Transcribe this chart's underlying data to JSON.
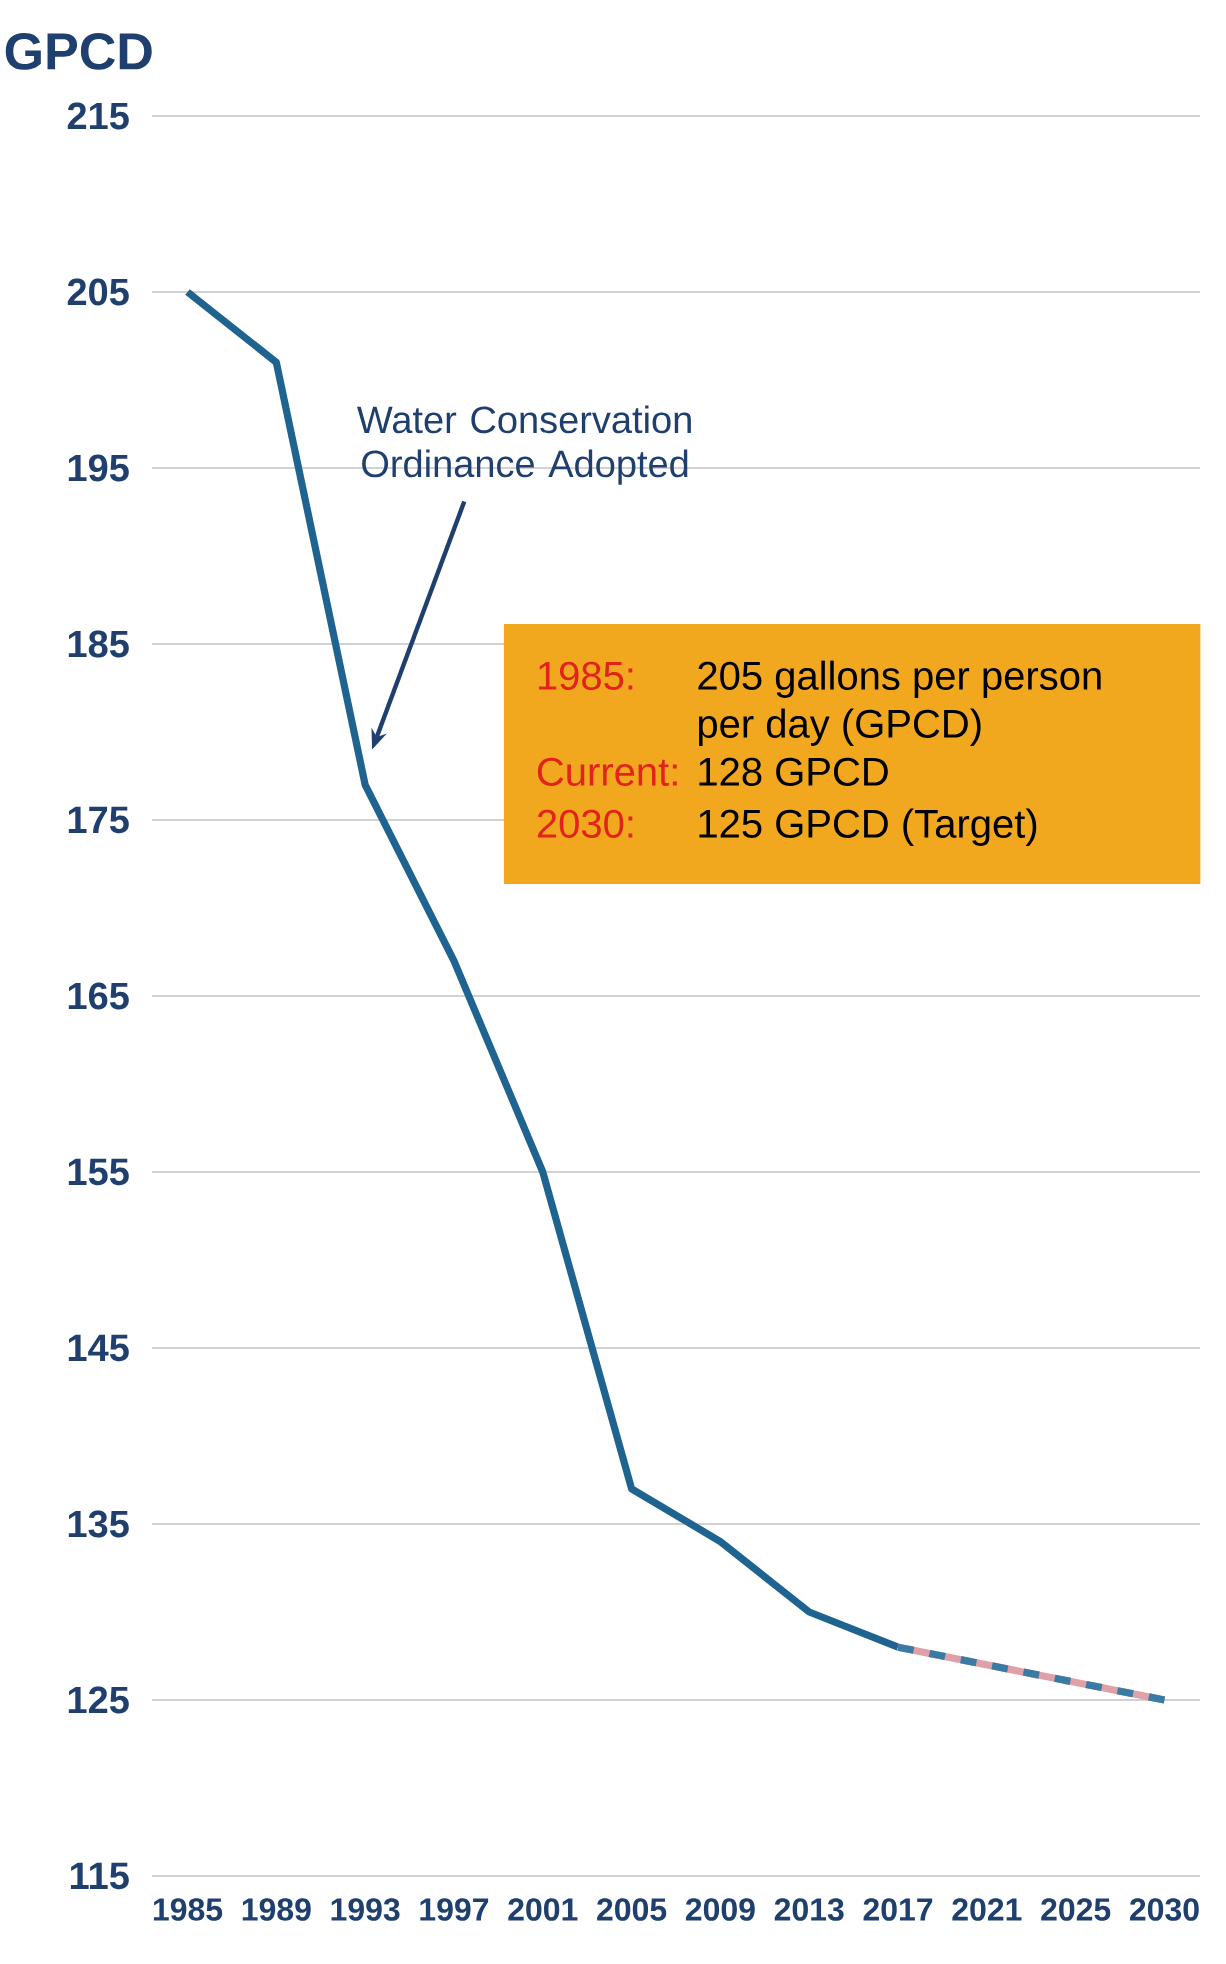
{
  "chart_data": {
    "type": "line",
    "ylabel": "GPCD",
    "categories": [
      "1985",
      "1989",
      "1993",
      "1997",
      "2001",
      "2005",
      "2009",
      "2013",
      "2017",
      "2021",
      "2025",
      "2030"
    ],
    "series": [
      {
        "color": "#1f6391",
        "line_style": "solid",
        "values": [
          205,
          201,
          177,
          167,
          155,
          137,
          134,
          130,
          128,
          null,
          null,
          null
        ]
      },
      {
        "color": "#e0a0a8",
        "line_style": "solid",
        "values": [
          null,
          null,
          null,
          null,
          null,
          null,
          null,
          null,
          128,
          127,
          126,
          125
        ]
      },
      {
        "color": "#3a7ba5",
        "line_style": "dashed",
        "values": [
          null,
          null,
          null,
          null,
          null,
          null,
          null,
          null,
          128,
          127,
          126,
          125
        ]
      }
    ],
    "ylim": [
      115,
      215
    ],
    "yticks": [
      115,
      125,
      135,
      145,
      155,
      165,
      175,
      185,
      195,
      205,
      215
    ],
    "grid": "y",
    "marker": "none",
    "annotations": [
      "Water Conservation Ordinance Adopted",
      "1985:",
      "205 gallons per person per day (GPCD)",
      "Current:",
      "128 GPCD",
      "2030:",
      "125 GPCD (Target)"
    ]
  }
}
